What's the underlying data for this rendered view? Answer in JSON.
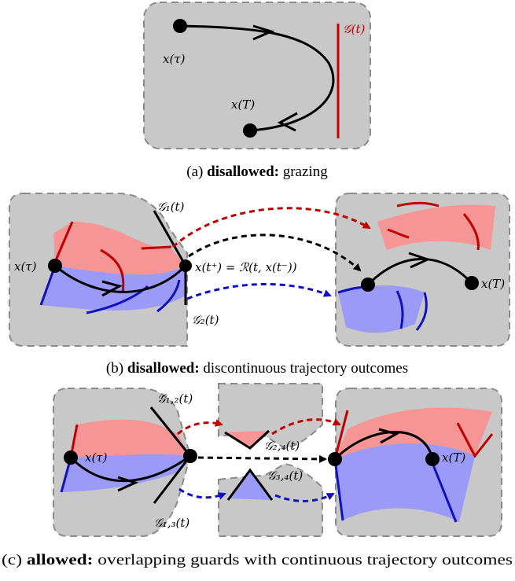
{
  "panel_a": {
    "guard_label": "𝒢(t)",
    "start_label": "x(τ)",
    "end_label": "x(T)",
    "caption_prefix": "(a) ",
    "caption_bold": "disallowed:",
    "caption_rest": " grazing",
    "colors": {
      "guard": "#c00000"
    }
  },
  "panel_b": {
    "guard1_label": "𝒢₁(t)",
    "guard2_label": "𝒢₂(t)",
    "start_label": "x(τ)",
    "reset_label": "x(t⁺) = ℛ(t, x(t⁻))",
    "end_label": "x(T)",
    "caption_prefix": "(b) ",
    "caption_bold": "disallowed:",
    "caption_rest": " discontinuous trajectory outcomes"
  },
  "panel_c": {
    "guard12_label": "𝒢₁,₂(t)",
    "guard13_label": "𝒢₁,₃(t)",
    "guard24_label": "𝒢₂,₄(t)",
    "guard34_label": "𝒢₃,₄(t)",
    "start_label": "x(τ)",
    "end_label": "x(T)",
    "caption_prefix": "(c) ",
    "caption_bold": "allowed:",
    "caption_rest": " overlapping guards with continuous trajectory outcomes"
  },
  "colors": {
    "red_fill": "#f59595",
    "blue_fill": "#9b9bf7",
    "panel": "#c8c8c8",
    "red": "#c00000",
    "blue": "#1010c0"
  }
}
